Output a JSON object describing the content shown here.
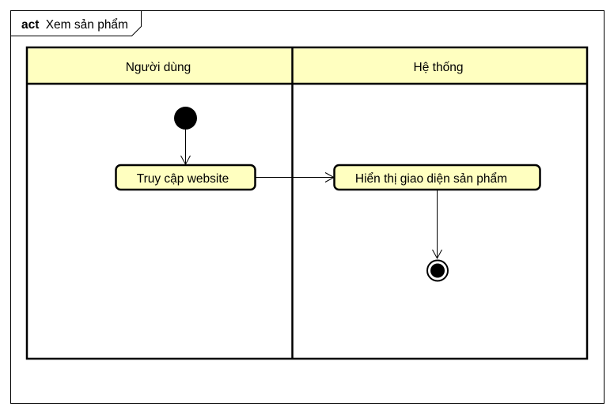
{
  "frame": {
    "keyword": "act",
    "name": "Xem sản phẩm"
  },
  "colors": {
    "fill": "#ffffc0",
    "stroke": "#000000",
    "background": "#ffffff"
  },
  "swimlanes": [
    {
      "label": "Người dùng"
    },
    {
      "label": "Hệ thống"
    }
  ],
  "nodes": {
    "start": {
      "type": "initial-node"
    },
    "access_website": {
      "type": "action",
      "label": "Truy cập website"
    },
    "show_products": {
      "type": "action",
      "label": "Hiển thị giao diện sản phẩm"
    },
    "end": {
      "type": "final-node"
    }
  },
  "edges": [
    {
      "from": "start",
      "to": "access_website"
    },
    {
      "from": "access_website",
      "to": "show_products"
    },
    {
      "from": "show_products",
      "to": "end"
    }
  ]
}
